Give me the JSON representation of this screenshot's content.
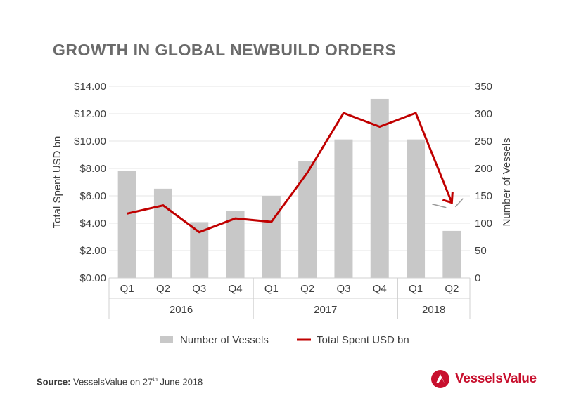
{
  "title": "GROWTH IN GLOBAL NEWBUILD ORDERS",
  "source": {
    "label": "Source:",
    "text_before": " VesselsValue on 27",
    "superscript": "th",
    "text_after": " June 2018"
  },
  "brand": {
    "name": "VesselsValue",
    "color": "#c8102e"
  },
  "colors": {
    "bars": "#c8c8c8",
    "line": "#c00000",
    "grid": "#e6e6e6",
    "axis_text": "#3f3f3f"
  },
  "chart_data": {
    "type": "bar",
    "categories": [
      "Q1",
      "Q2",
      "Q3",
      "Q4",
      "Q1",
      "Q2",
      "Q3",
      "Q4",
      "Q1",
      "Q2"
    ],
    "groups": [
      {
        "label": "2016",
        "count": 4
      },
      {
        "label": "2017",
        "count": 4
      },
      {
        "label": "2018",
        "count": 2
      }
    ],
    "series": [
      {
        "name": "Number of Vessels",
        "type": "bar",
        "axis": "right",
        "values": [
          196,
          163,
          102,
          123,
          150,
          213,
          253,
          327,
          253,
          86
        ]
      },
      {
        "name": "Total Spent USD bn",
        "type": "line",
        "axis": "left",
        "values": [
          4.7,
          5.3,
          3.35,
          4.35,
          4.1,
          7.7,
          12.05,
          11.05,
          12.05,
          5.5
        ]
      }
    ],
    "ylabel_left": "Total Spent USD bn",
    "ylabel_right": "Number of Vessels",
    "ylim_left": [
      0,
      14
    ],
    "ylim_right": [
      0,
      350
    ],
    "yticks_left": [
      "$0.00",
      "$2.00",
      "$4.00",
      "$6.00",
      "$8.00",
      "$10.00",
      "$12.00",
      "$14.00"
    ],
    "yticks_right": [
      "0",
      "50",
      "100",
      "150",
      "200",
      "250",
      "300",
      "350"
    ],
    "grid": true,
    "legend_position": "bottom"
  }
}
